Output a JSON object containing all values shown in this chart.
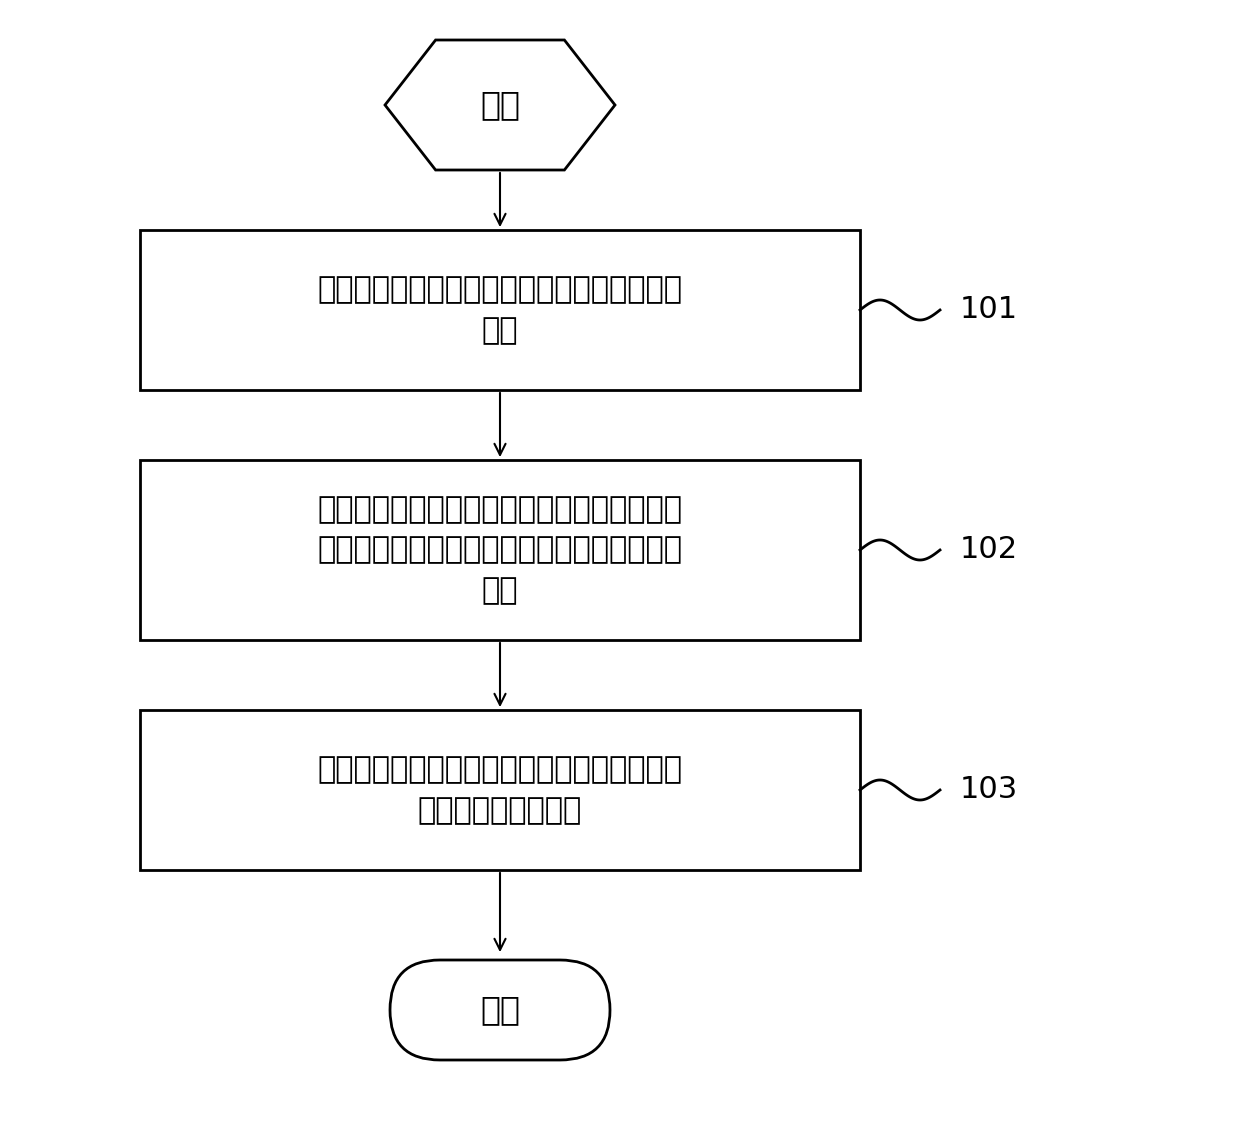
{
  "bg_color": "#ffffff",
  "box_color": "#ffffff",
  "box_edge_color": "#000000",
  "text_color": "#000000",
  "arrow_color": "#000000",
  "start_label": "开始",
  "end_label": "结束",
  "step1_label": "实时获取制动踏板的第一开关状态和第二开关\n状态",
  "step2_label": "若所述第一开关状态和所述第二开关状态的有\n效状态不一致，则判定所述制动踏板发生疑似\n故障",
  "step3_label": "当所述疑似故障满足第一预置条件时，判定所\n述制动踏板发生故障",
  "ref1": "101",
  "ref2": "102",
  "ref3": "103",
  "font_size": 22,
  "ref_font_size": 22
}
